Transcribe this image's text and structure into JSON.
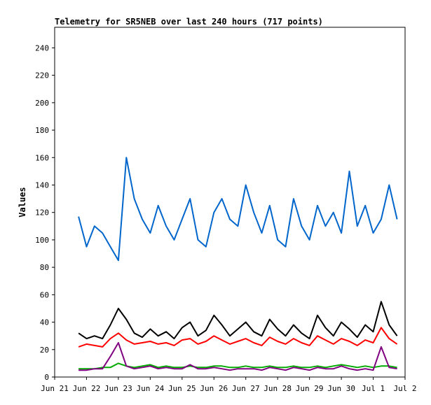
{
  "chart_data": {
    "type": "line",
    "title": "Telemetry for SR5NEB over last 240 hours (717 points)",
    "xlabel": "",
    "ylabel": "Values",
    "x_ticks": [
      "Jun 21",
      "Jun 22",
      "Jun 23",
      "Jun 24",
      "Jun 25",
      "Jun 26",
      "Jun 27",
      "Jun 28",
      "Jun 29",
      "Jun 30",
      "Jul 1",
      "Jul 2"
    ],
    "y_ticks": [
      "0",
      "20",
      "40",
      "60",
      "80",
      "100",
      "120",
      "140",
      "160",
      "180",
      "200",
      "220",
      "240"
    ],
    "ylim": [
      0,
      255
    ],
    "x_range_days": [
      0,
      11
    ],
    "grid": false,
    "legend": "none",
    "series": [
      {
        "color": "#0066cc",
        "x": [
          0.75,
          1.0,
          1.25,
          1.5,
          1.75,
          2.0,
          2.25,
          2.5,
          2.75,
          3.0,
          3.25,
          3.5,
          3.75,
          4.0,
          4.25,
          4.5,
          4.75,
          5.0,
          5.25,
          5.5,
          5.75,
          6.0,
          6.25,
          6.5,
          6.75,
          7.0,
          7.25,
          7.5,
          7.75,
          8.0,
          8.25,
          8.5,
          8.75,
          9.0,
          9.25,
          9.5,
          9.75,
          10.0,
          10.25,
          10.5,
          10.75
        ],
        "values": [
          117,
          95,
          110,
          105,
          95,
          85,
          160,
          130,
          115,
          105,
          125,
          110,
          100,
          115,
          130,
          100,
          95,
          120,
          130,
          115,
          110,
          140,
          120,
          105,
          125,
          100,
          95,
          130,
          110,
          100,
          125,
          110,
          120,
          105,
          150,
          110,
          125,
          105,
          115,
          140,
          115
        ]
      },
      {
        "color": "#000000",
        "x": [
          0.75,
          1.0,
          1.25,
          1.5,
          1.75,
          2.0,
          2.25,
          2.5,
          2.75,
          3.0,
          3.25,
          3.5,
          3.75,
          4.0,
          4.25,
          4.5,
          4.75,
          5.0,
          5.25,
          5.5,
          5.75,
          6.0,
          6.25,
          6.5,
          6.75,
          7.0,
          7.25,
          7.5,
          7.75,
          8.0,
          8.25,
          8.5,
          8.75,
          9.0,
          9.25,
          9.5,
          9.75,
          10.0,
          10.25,
          10.5,
          10.75
        ],
        "values": [
          32,
          28,
          30,
          28,
          38,
          50,
          42,
          32,
          29,
          35,
          30,
          33,
          28,
          36,
          40,
          30,
          34,
          45,
          38,
          30,
          35,
          40,
          33,
          30,
          42,
          35,
          30,
          38,
          32,
          28,
          45,
          36,
          30,
          40,
          35,
          29,
          38,
          33,
          55,
          38,
          30
        ]
      },
      {
        "color": "#ff0000",
        "x": [
          0.75,
          1.0,
          1.25,
          1.5,
          1.75,
          2.0,
          2.25,
          2.5,
          2.75,
          3.0,
          3.25,
          3.5,
          3.75,
          4.0,
          4.25,
          4.5,
          4.75,
          5.0,
          5.25,
          5.5,
          5.75,
          6.0,
          6.25,
          6.5,
          6.75,
          7.0,
          7.25,
          7.5,
          7.75,
          8.0,
          8.25,
          8.5,
          8.75,
          9.0,
          9.25,
          9.5,
          9.75,
          10.0,
          10.25,
          10.5,
          10.75
        ],
        "values": [
          22,
          24,
          23,
          22,
          28,
          32,
          27,
          24,
          25,
          26,
          24,
          25,
          23,
          27,
          28,
          24,
          26,
          30,
          27,
          24,
          26,
          28,
          25,
          23,
          29,
          26,
          24,
          28,
          25,
          23,
          30,
          27,
          24,
          28,
          26,
          23,
          27,
          25,
          36,
          28,
          24
        ]
      },
      {
        "color": "#00aa00",
        "x": [
          0.75,
          1.0,
          1.25,
          1.5,
          1.75,
          2.0,
          2.25,
          2.5,
          2.75,
          3.0,
          3.25,
          3.5,
          3.75,
          4.0,
          4.25,
          4.5,
          4.75,
          5.0,
          5.25,
          5.5,
          5.75,
          6.0,
          6.25,
          6.5,
          6.75,
          7.0,
          7.25,
          7.5,
          7.75,
          8.0,
          8.25,
          8.5,
          8.75,
          9.0,
          9.25,
          9.5,
          9.75,
          10.0,
          10.25,
          10.5,
          10.75
        ],
        "values": [
          6,
          6,
          6,
          7,
          7,
          10,
          8,
          7,
          8,
          9,
          7,
          8,
          7,
          7,
          8,
          7,
          7,
          8,
          8,
          7,
          7,
          8,
          7,
          7,
          8,
          7,
          7,
          8,
          7,
          7,
          8,
          7,
          8,
          9,
          8,
          7,
          8,
          7,
          8,
          8,
          7
        ]
      },
      {
        "color": "#800080",
        "x": [
          0.75,
          1.0,
          1.25,
          1.5,
          1.75,
          2.0,
          2.25,
          2.5,
          2.75,
          3.0,
          3.25,
          3.5,
          3.75,
          4.0,
          4.25,
          4.5,
          4.75,
          5.0,
          5.25,
          5.5,
          5.75,
          6.0,
          6.25,
          6.5,
          6.75,
          7.0,
          7.25,
          7.5,
          7.75,
          8.0,
          8.25,
          8.5,
          8.75,
          9.0,
          9.25,
          9.5,
          9.75,
          10.0,
          10.25,
          10.5,
          10.75
        ],
        "values": [
          5,
          5,
          6,
          6,
          15,
          25,
          8,
          6,
          7,
          8,
          6,
          7,
          6,
          6,
          9,
          6,
          6,
          7,
          6,
          5,
          6,
          6,
          6,
          5,
          7,
          6,
          5,
          7,
          6,
          5,
          7,
          6,
          6,
          8,
          6,
          5,
          6,
          5,
          22,
          7,
          6
        ]
      }
    ]
  }
}
